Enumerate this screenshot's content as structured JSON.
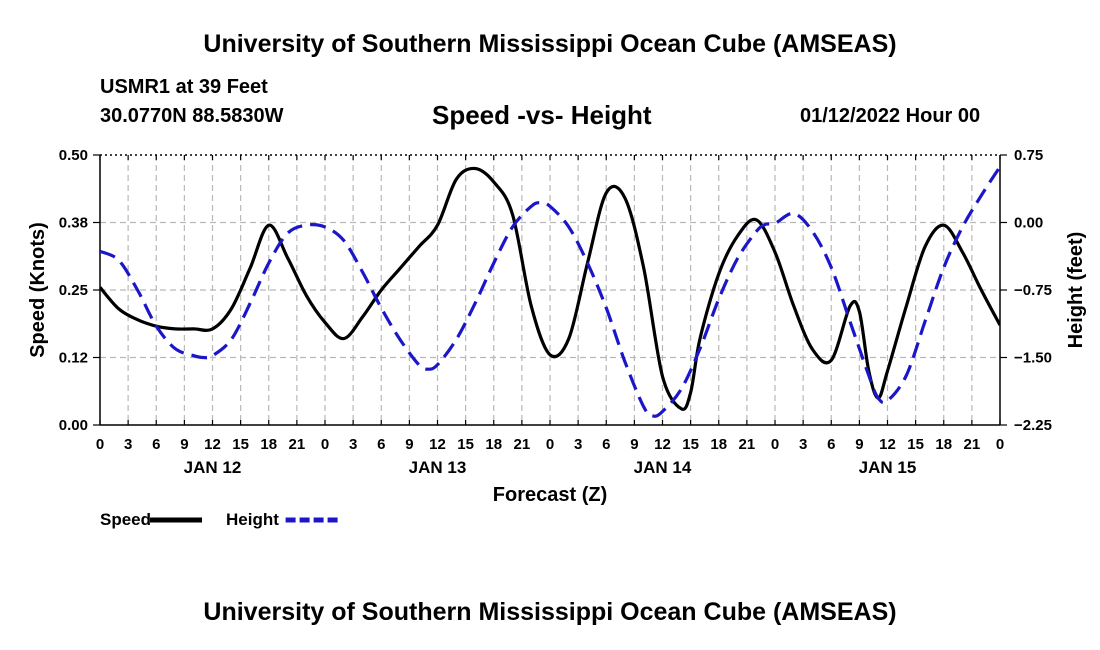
{
  "header": {
    "title": "University of Southern Mississippi Ocean Cube (AMSEAS)",
    "station": "USMR1 at 39 Feet",
    "coords": "30.0770N  88.5830W",
    "subtitle": "Speed -vs- Height",
    "datetime": "01/12/2022 Hour 00",
    "footer_title": "University of Southern Mississippi Ocean Cube (AMSEAS)"
  },
  "chart_data": {
    "type": "line",
    "title": "Speed -vs- Height",
    "xlabel": "Forecast (Z)",
    "ylabel": "Speed (Knots)",
    "y2label": "Height (feet)",
    "x_range": [
      0,
      96
    ],
    "xlim_hours": [
      0,
      96
    ],
    "x_tick_labels": [
      "0",
      "3",
      "6",
      "9",
      "12",
      "15",
      "18",
      "21",
      "0",
      "3",
      "6",
      "9",
      "12",
      "15",
      "18",
      "21",
      "0",
      "3",
      "6",
      "9",
      "12",
      "15",
      "18",
      "21",
      "0",
      "3",
      "6",
      "9",
      "12",
      "15",
      "18",
      "21",
      "0"
    ],
    "date_labels": [
      {
        "label": "JAN 12",
        "hour": 12
      },
      {
        "label": "JAN 13",
        "hour": 36
      },
      {
        "label": "JAN 14",
        "hour": 60
      },
      {
        "label": "JAN 15",
        "hour": 84
      }
    ],
    "ylim": [
      0,
      0.5
    ],
    "y_tick_values": [
      0,
      0.125,
      0.25,
      0.375,
      0.5
    ],
    "y_tick_labels": [
      "0.00",
      "0.12",
      "0.25",
      "0.38",
      "0.50"
    ],
    "y2lim": [
      -2.25,
      0.75
    ],
    "y2_tick_values": [
      -2.25,
      -1.5,
      -0.75,
      0.0,
      0.75
    ],
    "y2_tick_labels": [
      "−2.25",
      "−1.50",
      "−0.75",
      "0.00",
      "0.75"
    ],
    "grid": true,
    "legend_position": "bottom-left",
    "series": [
      {
        "name": "Speed",
        "axis": "left",
        "color": "#000000",
        "dash": "solid",
        "x": [
          0,
          2,
          4,
          6,
          8,
          10,
          12,
          14,
          16,
          18,
          20,
          22,
          24,
          26,
          28,
          30,
          32,
          34,
          36,
          38,
          40,
          42,
          44,
          46,
          48,
          50,
          52,
          54,
          56,
          58,
          60,
          62,
          63,
          64,
          66,
          68,
          70,
          72,
          74,
          76,
          78,
          80,
          81,
          82,
          83,
          84,
          86,
          88,
          90,
          92,
          94,
          96
        ],
        "values": [
          0.255,
          0.215,
          0.195,
          0.183,
          0.178,
          0.178,
          0.178,
          0.215,
          0.29,
          0.37,
          0.31,
          0.24,
          0.19,
          0.16,
          0.2,
          0.25,
          0.29,
          0.33,
          0.37,
          0.455,
          0.475,
          0.45,
          0.39,
          0.22,
          0.13,
          0.16,
          0.3,
          0.43,
          0.42,
          0.29,
          0.09,
          0.03,
          0.06,
          0.16,
          0.28,
          0.35,
          0.38,
          0.32,
          0.22,
          0.14,
          0.12,
          0.22,
          0.21,
          0.1,
          0.05,
          0.1,
          0.22,
          0.33,
          0.37,
          0.32,
          0.25,
          0.185
        ]
      },
      {
        "name": "Height",
        "axis": "right",
        "color": "#1b17c9",
        "dash": "dashed",
        "x": [
          0,
          2,
          4,
          6,
          8,
          10,
          11,
          12,
          14,
          16,
          18,
          20,
          22,
          24,
          26,
          28,
          30,
          32,
          34,
          35,
          36,
          38,
          40,
          42,
          44,
          46,
          47,
          48,
          50,
          52,
          54,
          56,
          58,
          59,
          60,
          62,
          64,
          66,
          68,
          70,
          71,
          72,
          74,
          76,
          78,
          80,
          82,
          83,
          84,
          86,
          88,
          90,
          92,
          94,
          96
        ],
        "values": [
          -0.32,
          -0.42,
          -0.75,
          -1.15,
          -1.4,
          -1.48,
          -1.5,
          -1.48,
          -1.3,
          -0.9,
          -0.45,
          -0.12,
          -0.03,
          -0.05,
          -0.2,
          -0.55,
          -0.95,
          -1.3,
          -1.58,
          -1.63,
          -1.58,
          -1.3,
          -0.9,
          -0.45,
          -0.05,
          0.18,
          0.22,
          0.18,
          -0.05,
          -0.45,
          -0.95,
          -1.55,
          -2.05,
          -2.15,
          -2.1,
          -1.85,
          -1.4,
          -0.85,
          -0.4,
          -0.1,
          -0.02,
          -0.01,
          0.1,
          -0.1,
          -0.5,
          -1.1,
          -1.7,
          -1.95,
          -1.98,
          -1.7,
          -1.1,
          -0.5,
          -0.05,
          0.3,
          0.62
        ]
      }
    ],
    "legend": [
      {
        "label": "Speed",
        "color": "#000000",
        "dash": "solid"
      },
      {
        "label": "Height",
        "color": "#1b17c9",
        "dash": "dashed"
      }
    ]
  }
}
